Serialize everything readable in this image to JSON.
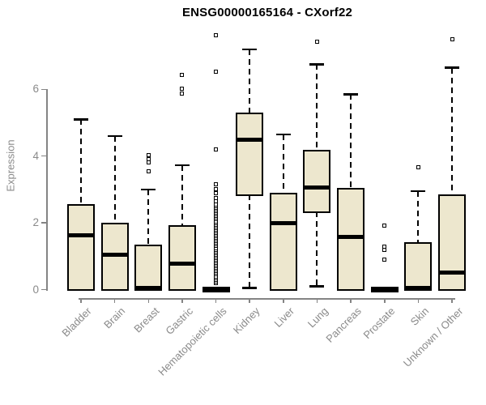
{
  "figure": {
    "title": "ENSG00000165164 - CXorf22"
  },
  "chart_data": {
    "type": "boxplot",
    "title": "ENSG00000165164 - CXorf22",
    "xlabel": "",
    "ylabel": "Expression",
    "yticks": [
      0,
      2,
      4,
      6
    ],
    "ylim": [
      -0.3,
      7.8
    ],
    "grid": false,
    "legend": "none",
    "categories": [
      "Bladder",
      "Brain",
      "Breast",
      "Gastric",
      "Hematopoietic cells",
      "Kidney",
      "Liver",
      "Lung",
      "Pancreas",
      "Prostate",
      "Skin",
      "Unknown / Other"
    ],
    "series": [
      {
        "name": "Bladder",
        "min": 0,
        "q1": 0,
        "median": 1.62,
        "q3": 2.52,
        "max": 5.1,
        "outliers": []
      },
      {
        "name": "Brain",
        "min": 0,
        "q1": 0,
        "median": 1.05,
        "q3": 1.95,
        "max": 4.6,
        "outliers": []
      },
      {
        "name": "Breast",
        "min": 0,
        "q1": 0,
        "median": 0.05,
        "q3": 1.3,
        "max": 3.0,
        "outliers": [
          3.55,
          3.8,
          3.9,
          4.02
        ]
      },
      {
        "name": "Gastric",
        "min": 0,
        "q1": 0,
        "median": 0.78,
        "q3": 1.88,
        "max": 3.72,
        "outliers": [
          5.88,
          6.02,
          6.42
        ]
      },
      {
        "name": "Hematopoietic cells",
        "min": 0,
        "q1": 0,
        "median": 0,
        "q3": 0,
        "max": 0,
        "outliers": [
          0.2,
          0.25,
          0.3,
          0.35,
          0.4,
          0.45,
          0.5,
          0.55,
          0.6,
          0.65,
          0.7,
          0.75,
          0.8,
          0.85,
          0.9,
          0.95,
          1.0,
          1.05,
          1.1,
          1.15,
          1.2,
          1.25,
          1.3,
          1.35,
          1.4,
          1.45,
          1.5,
          1.55,
          1.6,
          1.65,
          1.7,
          1.75,
          1.8,
          1.85,
          1.9,
          1.95,
          2.0,
          2.05,
          2.1,
          2.15,
          2.2,
          2.25,
          2.3,
          2.35,
          2.4,
          2.45,
          2.5,
          2.55,
          2.65,
          2.75,
          2.9,
          3.02,
          3.15,
          4.2,
          6.52,
          7.62
        ]
      },
      {
        "name": "Kidney",
        "min": 0.05,
        "q1": 2.85,
        "median": 4.5,
        "q3": 5.25,
        "max": 7.2,
        "outliers": []
      },
      {
        "name": "Liver",
        "min": 0,
        "q1": 0,
        "median": 2.0,
        "q3": 2.85,
        "max": 4.65,
        "outliers": []
      },
      {
        "name": "Lung",
        "min": 0.1,
        "q1": 2.35,
        "median": 3.05,
        "q3": 4.15,
        "max": 6.75,
        "outliers": [
          7.42
        ]
      },
      {
        "name": "Pancreas",
        "min": 0,
        "q1": 0,
        "median": 1.58,
        "q3": 3.0,
        "max": 5.85,
        "outliers": []
      },
      {
        "name": "Prostate",
        "min": 0,
        "q1": 0,
        "median": 0,
        "q3": 0,
        "max": 0,
        "outliers": [
          0.9,
          1.2,
          1.28,
          1.92
        ]
      },
      {
        "name": "Skin",
        "min": 0,
        "q1": 0,
        "median": 0.05,
        "q3": 1.38,
        "max": 2.95,
        "outliers": [
          3.67
        ]
      },
      {
        "name": "Unknown / Other",
        "min": 0,
        "q1": 0,
        "median": 0.5,
        "q3": 2.8,
        "max": 6.65,
        "outliers": [
          7.5
        ]
      }
    ],
    "colors": {
      "box_fill": "#ede7ce",
      "box_border": "#000000",
      "median": "#000000",
      "whisker": "#000000",
      "axis": "#848484",
      "tick_label": "#8a8a8a",
      "title": "#000000"
    }
  }
}
